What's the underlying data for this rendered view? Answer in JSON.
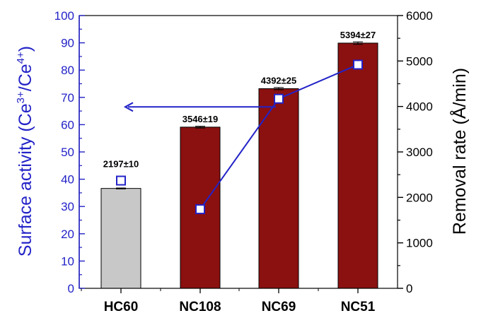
{
  "chart_data": {
    "type": "bar",
    "categories": [
      "HC60",
      "NC108",
      "NC69",
      "NC51"
    ],
    "series": [
      {
        "name": "Removal rate",
        "axis": "right",
        "unit": "Å/min",
        "values": [
          2197,
          3546,
          4392,
          5394
        ],
        "errors": [
          10,
          19,
          25,
          27
        ],
        "data_labels": [
          "2197±10",
          "3546±19",
          "4392±25",
          "5394±27"
        ],
        "bar_colors": [
          "#c8c8c8",
          "#8b1010",
          "#8b1010",
          "#8b1010"
        ]
      },
      {
        "name": "Surface activity",
        "axis": "left",
        "type": "line",
        "values": [
          null,
          29,
          69.5,
          82
        ],
        "marker": "open-square",
        "color": "#2323c8"
      },
      {
        "name": "HC60 surface activity",
        "axis": "left",
        "type": "scatter",
        "values": [
          39.5,
          null,
          null,
          null
        ],
        "marker": "open-square",
        "color": "#2323c8"
      }
    ],
    "annotation": {
      "type": "arrow",
      "direction": "left",
      "y_value": 66.5,
      "from_category": "NC69",
      "to_category": "HC60",
      "meaning": "points to left axis"
    },
    "left_axis": {
      "label_parts": [
        "Surface activity (Ce",
        "3+",
        "/Ce",
        "4+",
        ")"
      ],
      "ylim": [
        0,
        100
      ],
      "ticks": [
        0,
        10,
        20,
        30,
        40,
        50,
        60,
        70,
        80,
        90,
        100
      ],
      "color": "#2323c8"
    },
    "right_axis": {
      "label": "Removal rate (Å/min)",
      "ylim": [
        0,
        6000
      ],
      "ticks": [
        0,
        1000,
        2000,
        3000,
        4000,
        5000,
        6000
      ],
      "color": "#000000"
    },
    "grid": false
  }
}
